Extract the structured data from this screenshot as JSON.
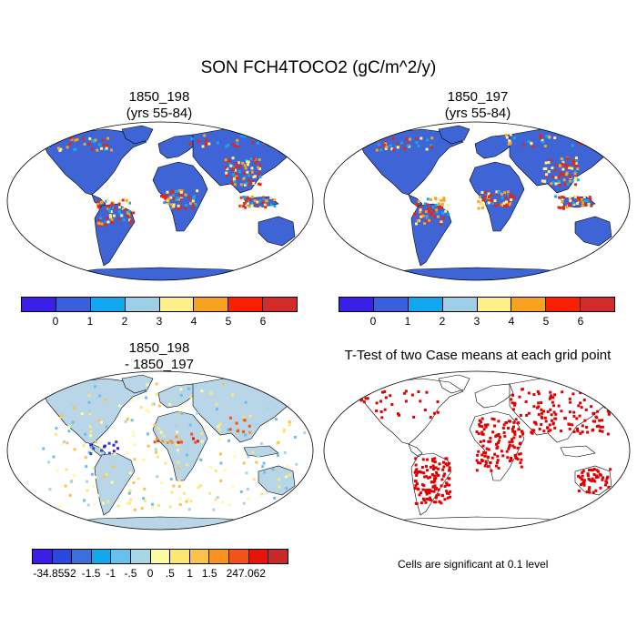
{
  "figure_title": "SON FCH4TOCO2 (gC/m^2/y)",
  "panels": [
    {
      "id": "p1",
      "title": "1850_198\n(yrs 55-84)",
      "type": "field"
    },
    {
      "id": "p2",
      "title": "1850_197\n(yrs 55-84)",
      "type": "field"
    },
    {
      "id": "p3",
      "title": "1850_198\n- 1850_197",
      "type": "difference"
    },
    {
      "id": "p4",
      "title": "T-Test of two Case means at each grid point",
      "type": "ttest"
    }
  ],
  "colorbar_top": {
    "colors": [
      "#3a1fe8",
      "#3a5fdc",
      "#12a8ef",
      "#9fcfe6",
      "#fdf08a",
      "#f7a221",
      "#fa1f00",
      "#d32b2b"
    ],
    "labels": [
      "0",
      "1",
      "2",
      "3",
      "4",
      "5",
      "6"
    ]
  },
  "colorbar_diff": {
    "colors": [
      "#3a1fe8",
      "#2a47e0",
      "#3a6fdc",
      "#12a8ef",
      "#68c0ee",
      "#a9d6e5",
      "#fdfba0",
      "#fbe873",
      "#fcc24a",
      "#f7931e",
      "#f3521b",
      "#e8140a",
      "#c92828"
    ],
    "labels": [
      "-34.855",
      "-2",
      "-1.5",
      "-1",
      "-.5",
      "0",
      ".5",
      "1",
      "1.5",
      "2",
      "47.062"
    ]
  },
  "significance_note": "Cells are significant at 0.1 level",
  "colors": {
    "ocean": "#ffffff",
    "land_field": "#3e64d6",
    "land_diff": "#b8d6e8",
    "significant": "#e00000"
  }
}
